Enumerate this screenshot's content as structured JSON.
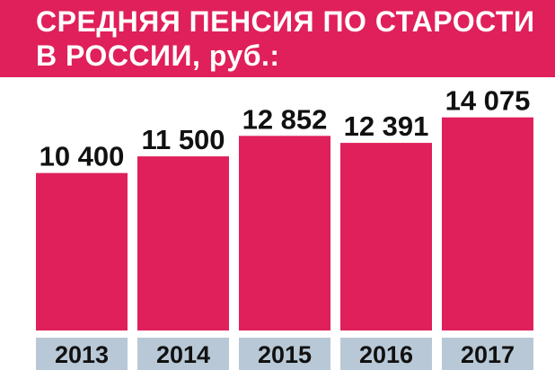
{
  "title": {
    "line1": "СРЕДНЯЯ ПЕНСИЯ ПО СТАРОСТИ",
    "line2": "В РОССИИ, руб.:"
  },
  "colors": {
    "accent": "#e0205a",
    "bar": "#e0205a",
    "year_tile": "#b8c8d6",
    "text": "#111111"
  },
  "chart_data": {
    "type": "bar",
    "categories": [
      "2013",
      "2014",
      "2015",
      "2016",
      "2017"
    ],
    "values": [
      10400,
      11500,
      12852,
      12391,
      14075
    ],
    "value_labels": [
      "10 400",
      "11 500",
      "12 852",
      "12 391",
      "14 075"
    ],
    "title": "СРЕДНЯЯ ПЕНСИЯ ПО СТАРОСТИ В РОССИИ, руб.:",
    "grid": false,
    "legend": "none"
  }
}
